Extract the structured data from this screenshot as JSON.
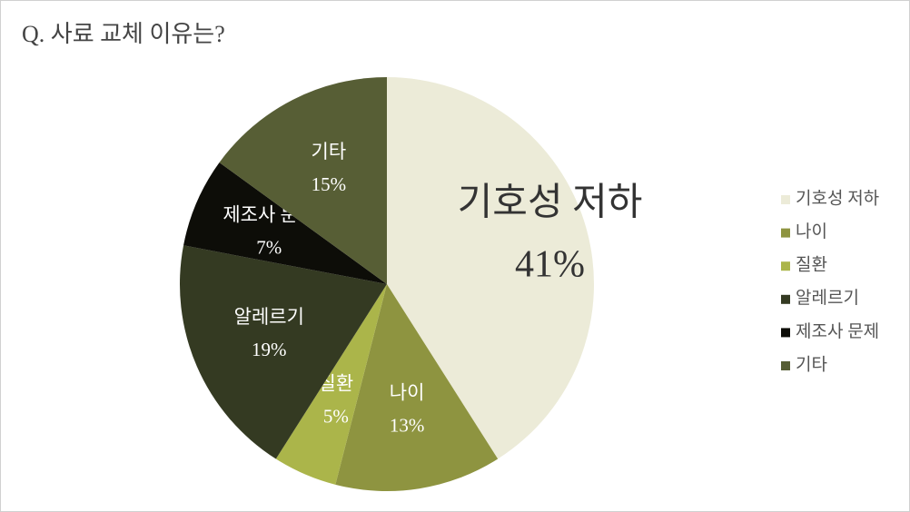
{
  "chart_data": {
    "type": "pie",
    "title": "Q. 사료 교체 이유는?",
    "categories": [
      "기호성 저하",
      "나이",
      "질환",
      "알레르기",
      "제조사 문제",
      "기타"
    ],
    "values": [
      41,
      13,
      5,
      19,
      7,
      15
    ],
    "value_labels": [
      "41%",
      "13%",
      "5%",
      "19%",
      "7%",
      "15%"
    ],
    "colors": [
      "#ecebd8",
      "#8e9440",
      "#abb54a",
      "#343a22",
      "#0d0d08",
      "#575e35"
    ],
    "legend": "right"
  }
}
